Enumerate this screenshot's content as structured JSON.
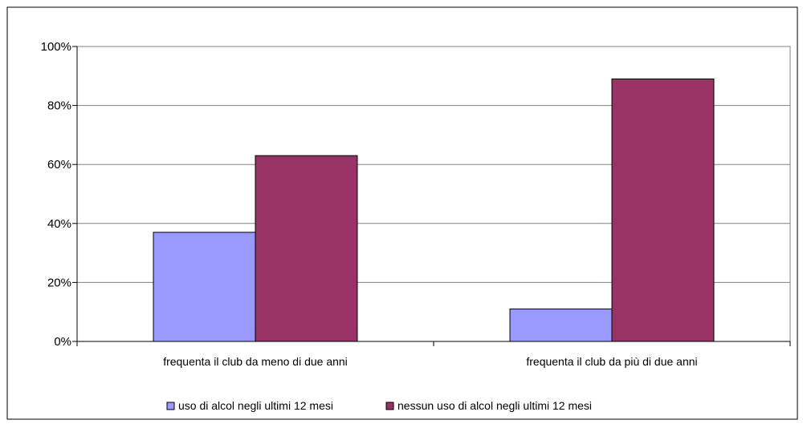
{
  "chart_data": {
    "type": "bar",
    "categories": [
      "frequenta il club da meno di due anni",
      "frequenta il club da più di due anni"
    ],
    "series": [
      {
        "name": "uso di alcol negli ultimi 12 mesi",
        "values": [
          37,
          11
        ],
        "color": "#9999ff"
      },
      {
        "name": "nessun uso di alcol negli ultimi 12 mesi",
        "values": [
          63,
          89
        ],
        "color": "#993366"
      }
    ],
    "yticks": [
      "0%",
      "20%",
      "40%",
      "60%",
      "80%",
      "100%"
    ],
    "ylim": [
      0,
      100
    ],
    "grid": true,
    "legend_position": "bottom"
  }
}
